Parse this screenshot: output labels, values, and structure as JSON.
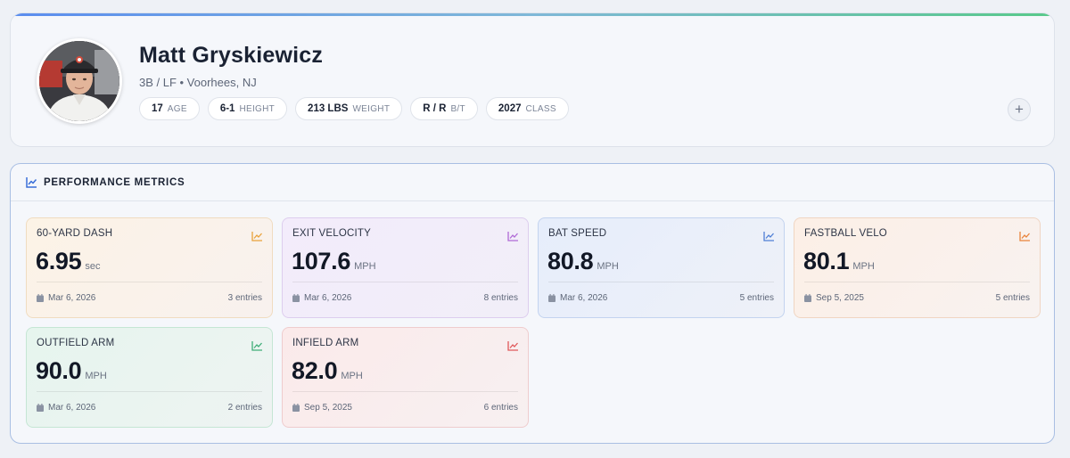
{
  "profile": {
    "name": "Matt Gryskiewicz",
    "subtitle": "3B / LF • Voorhees, NJ",
    "chips": [
      {
        "value": "17",
        "label": "AGE"
      },
      {
        "value": "6-1",
        "label": "HEIGHT"
      },
      {
        "value": "213 LBS",
        "label": "WEIGHT"
      },
      {
        "value": "R / R",
        "label": "B/T"
      },
      {
        "value": "2027",
        "label": "CLASS"
      }
    ],
    "plus_label": "+"
  },
  "metrics": {
    "title": "PERFORMANCE METRICS",
    "cards": [
      {
        "label": "60-YARD DASH",
        "value": "6.95",
        "unit": "sec",
        "date": "Mar 6, 2026",
        "entries": "3 entries",
        "accent": "#e9a23b",
        "bg_from": "#fcf3e6",
        "bg_to": "#f8f1ee",
        "border": "#f0dcc0"
      },
      {
        "label": "EXIT VELOCITY",
        "value": "107.6",
        "unit": "MPH",
        "date": "Mar 6, 2026",
        "entries": "8 entries",
        "accent": "#b06ad6",
        "bg_from": "#f3ecfb",
        "bg_to": "#f1eef8",
        "border": "#ddcdee"
      },
      {
        "label": "BAT SPEED",
        "value": "80.8",
        "unit": "MPH",
        "date": "Mar 6, 2026",
        "entries": "5 entries",
        "accent": "#4f7fd6",
        "bg_from": "#e6edfb",
        "bg_to": "#eef1f8",
        "border": "#c3d3ef"
      },
      {
        "label": "FASTBALL VELO",
        "value": "80.1",
        "unit": "MPH",
        "date": "Sep 5, 2025",
        "entries": "5 entries",
        "accent": "#e9833b",
        "bg_from": "#fcefe6",
        "bg_to": "#f8f2f0",
        "border": "#f0d5c2"
      },
      {
        "label": "OUTFIELD ARM",
        "value": "90.0",
        "unit": "MPH",
        "date": "Mar 6, 2026",
        "entries": "2 entries",
        "accent": "#3fae78",
        "bg_from": "#e6f5ee",
        "bg_to": "#eef3f2",
        "border": "#c5e6d4"
      },
      {
        "label": "INFIELD ARM",
        "value": "82.0",
        "unit": "MPH",
        "date": "Sep 5, 2025",
        "entries": "6 entries",
        "accent": "#e0585a",
        "bg_from": "#fbeaea",
        "bg_to": "#f7f0f1",
        "border": "#efcccd"
      }
    ]
  },
  "icons": {
    "chart_icon": "trend-chart-icon",
    "calendar_icon": "calendar-icon",
    "header_icon_color": "#3a6fd8"
  }
}
